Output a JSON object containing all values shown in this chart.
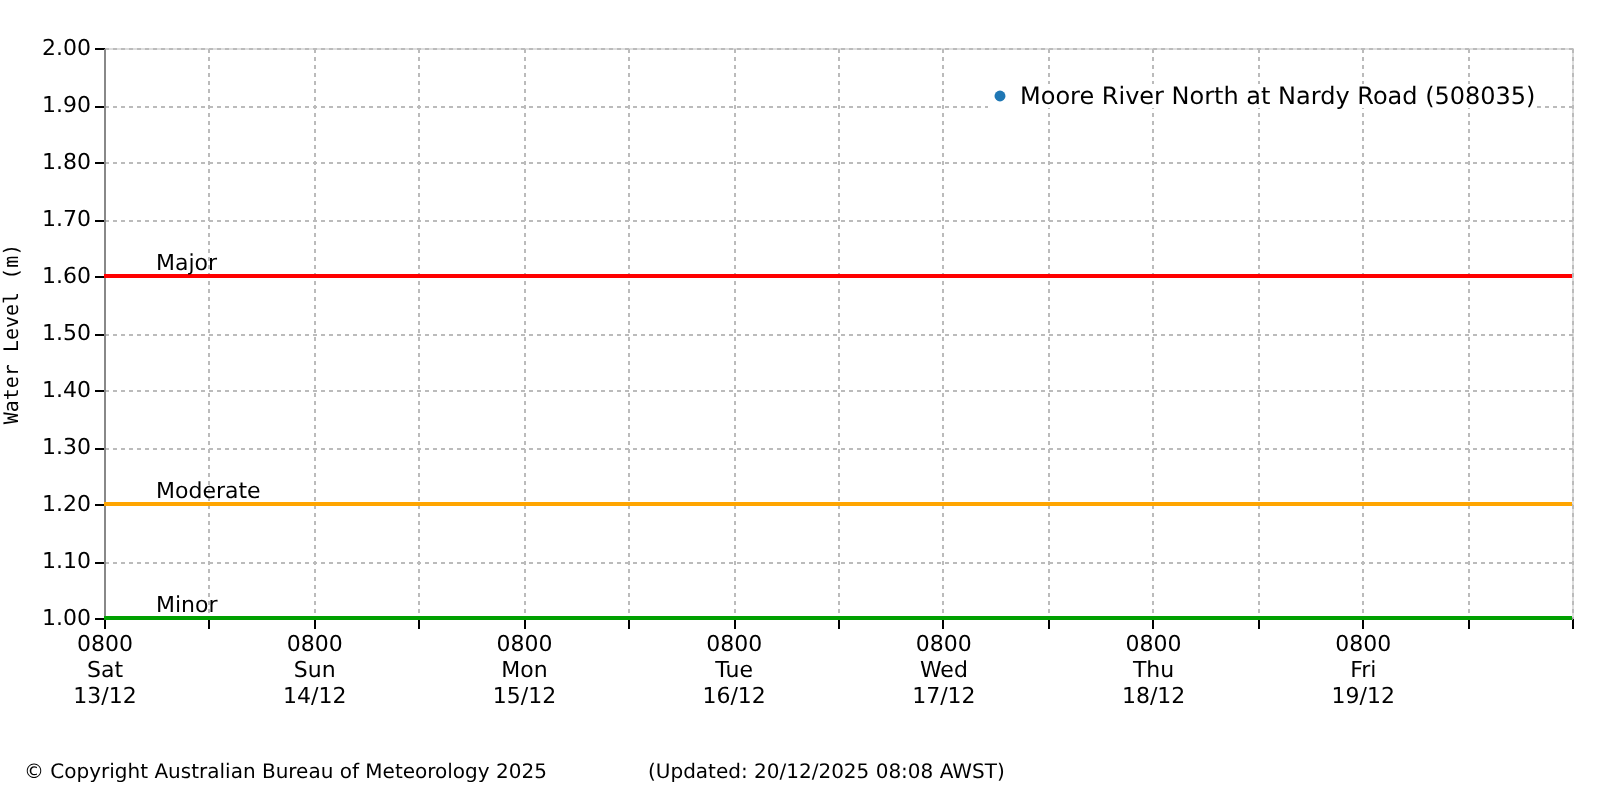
{
  "chart_data": {
    "type": "scatter",
    "ylabel": "Water Level (m)",
    "series": [
      {
        "name": "Moore River North at Nardy Road (508035)",
        "color": "#1f77b4",
        "values": [
          null,
          null,
          null,
          null,
          null,
          null,
          null,
          null,
          null,
          null,
          null,
          null,
          null,
          null,
          null
        ]
      }
    ],
    "categories": [
      "0800\nSat\n13/12",
      null,
      "0800\nSun\n14/12",
      null,
      "0800\nMon\n15/12",
      null,
      "0800\nTue\n16/12",
      null,
      "0800\nWed\n17/12",
      null,
      "0800\nThu\n18/12",
      null,
      "0800\nFri\n19/12",
      null,
      null
    ],
    "ylim": [
      1.0,
      2.0
    ],
    "yticks": [
      {
        "value": 1.0,
        "label": "1.00"
      },
      {
        "value": 1.1,
        "label": "1.10"
      },
      {
        "value": 1.2,
        "label": "1.20"
      },
      {
        "value": 1.3,
        "label": "1.30"
      },
      {
        "value": 1.4,
        "label": "1.40"
      },
      {
        "value": 1.5,
        "label": "1.50"
      },
      {
        "value": 1.6,
        "label": "1.60"
      },
      {
        "value": 1.7,
        "label": "1.70"
      },
      {
        "value": 1.8,
        "label": "1.80"
      },
      {
        "value": 1.9,
        "label": "1.90"
      },
      {
        "value": 2.0,
        "label": "2.00"
      }
    ],
    "ref_lines": [
      {
        "axis": "y",
        "value": 1.6,
        "label": "Major",
        "color": "#ff0000"
      },
      {
        "axis": "y",
        "value": 1.2,
        "label": "Moderate",
        "color": "#ffa500"
      },
      {
        "axis": "y",
        "value": 1.0,
        "label": "Minor",
        "color": "#00a000"
      }
    ],
    "grid": true,
    "legend": "top right",
    "marker": "circle",
    "annotations": [
      "© Copyright Australian Bureau of Meteorology 2025",
      "(Updated: 20/12/2025 08:08 AWST)"
    ]
  }
}
